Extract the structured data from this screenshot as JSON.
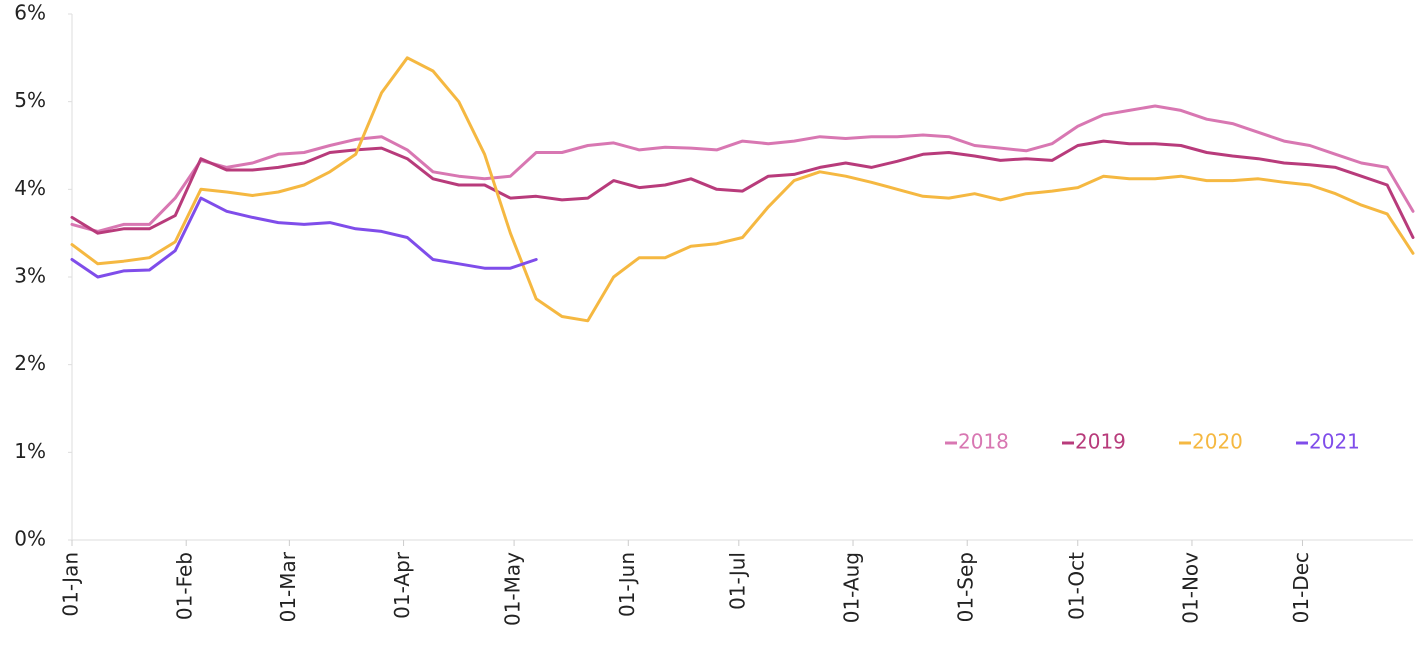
{
  "chart_data": {
    "type": "line",
    "x": [
      0,
      7,
      14,
      21,
      28,
      35,
      42,
      49,
      56,
      63,
      70,
      77,
      84,
      91,
      98,
      105,
      112,
      119,
      126,
      133,
      140,
      147,
      154,
      161,
      168,
      175,
      182,
      189,
      196,
      203,
      210,
      217,
      224,
      231,
      238,
      245,
      252,
      259,
      266,
      273,
      280,
      287,
      294,
      301,
      308,
      315,
      322,
      329,
      336,
      343,
      350,
      357,
      364
    ],
    "xlim": [
      0,
      364
    ],
    "xticks": [
      {
        "value": 0,
        "label": "01-Jan"
      },
      {
        "value": 31,
        "label": "01-Feb"
      },
      {
        "value": 59,
        "label": "01-Mar"
      },
      {
        "value": 90,
        "label": "01-Apr"
      },
      {
        "value": 120,
        "label": "01-May"
      },
      {
        "value": 151,
        "label": "01-Jun"
      },
      {
        "value": 181,
        "label": "01-Jul"
      },
      {
        "value": 212,
        "label": "01-Aug"
      },
      {
        "value": 243,
        "label": "01-Sep"
      },
      {
        "value": 273,
        "label": "01-Oct"
      },
      {
        "value": 304,
        "label": "01-Nov"
      },
      {
        "value": 334,
        "label": "01-Dec"
      }
    ],
    "ylim": [
      0,
      6
    ],
    "yticks": [
      {
        "value": 0,
        "label": "0%"
      },
      {
        "value": 1,
        "label": "1%"
      },
      {
        "value": 2,
        "label": "2%"
      },
      {
        "value": 3,
        "label": "3%"
      },
      {
        "value": 4,
        "label": "4%"
      },
      {
        "value": 5,
        "label": "5%"
      },
      {
        "value": 6,
        "label": "6%"
      }
    ],
    "grid": false,
    "legend": "lower right",
    "series": [
      {
        "name": "2018",
        "color": "#d877b2",
        "values": [
          3.6,
          3.52,
          3.6,
          3.6,
          3.9,
          4.33,
          4.25,
          4.3,
          4.4,
          4.42,
          4.5,
          4.57,
          4.6,
          4.45,
          4.2,
          4.15,
          4.12,
          4.15,
          4.42,
          4.42,
          4.5,
          4.53,
          4.45,
          4.48,
          4.47,
          4.45,
          4.55,
          4.52,
          4.55,
          4.6,
          4.58,
          4.6,
          4.6,
          4.62,
          4.6,
          4.5,
          4.47,
          4.44,
          4.52,
          4.72,
          4.85,
          4.9,
          4.95,
          4.9,
          4.8,
          4.75,
          4.65,
          4.55,
          4.5,
          4.4,
          4.3,
          4.25,
          3.75
        ]
      },
      {
        "name": "2019",
        "color": "#b83b7b",
        "values": [
          3.68,
          3.5,
          3.55,
          3.55,
          3.7,
          4.35,
          4.22,
          4.22,
          4.25,
          4.3,
          4.42,
          4.45,
          4.47,
          4.35,
          4.12,
          4.05,
          4.05,
          3.9,
          3.92,
          3.88,
          3.9,
          4.1,
          4.02,
          4.05,
          4.12,
          4.0,
          3.98,
          4.15,
          4.17,
          4.25,
          4.3,
          4.25,
          4.32,
          4.4,
          4.42,
          4.38,
          4.33,
          4.35,
          4.33,
          4.5,
          4.55,
          4.52,
          4.52,
          4.5,
          4.42,
          4.38,
          4.35,
          4.3,
          4.28,
          4.25,
          4.15,
          4.05,
          3.45
        ]
      },
      {
        "name": "2020",
        "color": "#f5b841",
        "values": [
          3.37,
          3.15,
          3.18,
          3.22,
          3.4,
          4.0,
          3.97,
          3.93,
          3.97,
          4.05,
          4.2,
          4.4,
          5.1,
          5.5,
          5.35,
          5.0,
          4.4,
          3.5,
          2.75,
          2.55,
          2.5,
          3.0,
          3.22,
          3.22,
          3.35,
          3.38,
          3.45,
          3.8,
          4.1,
          4.2,
          4.15,
          4.08,
          4.0,
          3.92,
          3.9,
          3.95,
          3.88,
          3.95,
          3.98,
          4.02,
          4.15,
          4.12,
          4.12,
          4.15,
          4.1,
          4.1,
          4.12,
          4.08,
          4.05,
          3.95,
          3.82,
          3.72,
          3.27
        ]
      },
      {
        "name": "2021",
        "color": "#7f4dea",
        "values": [
          3.2,
          3.0,
          3.07,
          3.08,
          3.3,
          3.9,
          3.75,
          3.68,
          3.62,
          3.6,
          3.62,
          3.55,
          3.52,
          3.45,
          3.2,
          3.15,
          3.1,
          3.1,
          3.2,
          null,
          null,
          null,
          null,
          null,
          null,
          null,
          null,
          null,
          null,
          null,
          null,
          null,
          null,
          null,
          null,
          null,
          null,
          null,
          null,
          null,
          null,
          null,
          null,
          null,
          null,
          null,
          null,
          null,
          null,
          null,
          null,
          null,
          null
        ]
      }
    ]
  }
}
